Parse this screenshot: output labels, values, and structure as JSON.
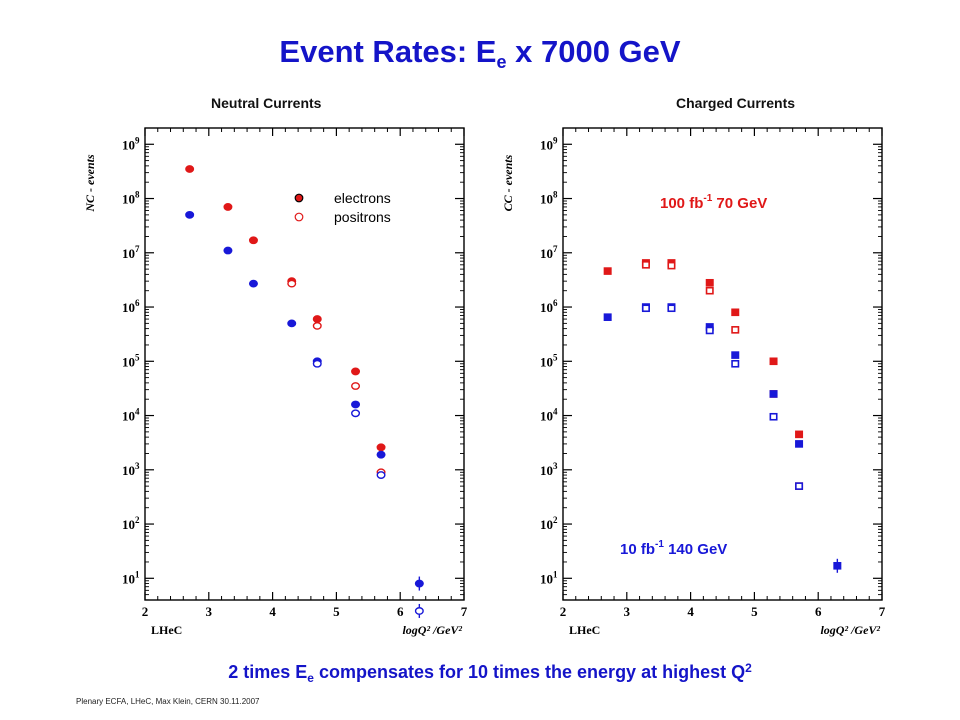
{
  "title": {
    "main": "Event Rates: E",
    "sub": "e",
    "rest": " x 7000 GeV"
  },
  "footer": "Plenary ECFA, LHeC, Max Klein, CERN 30.11.2007",
  "bottom_note": {
    "p1": "2 times E",
    "sub": "e",
    "p2": " compensates for 10 times the energy at highest Q",
    "sup": "2"
  },
  "colors": {
    "title": "#1414c8",
    "red": "#e01818",
    "blue": "#1818d8"
  },
  "chart_data": [
    {
      "type": "scatter",
      "title": "Neutral Currents",
      "xlabel": "logQ² /GeV²",
      "ylabel": "NC - events",
      "brand": "LHeC",
      "xlim": [
        2,
        7
      ],
      "ylim_log10": [
        0.6,
        9.3
      ],
      "x_ticks": [
        "2",
        "3",
        "4",
        "5",
        "6",
        "7"
      ],
      "y_ticks": [
        {
          "base": "10",
          "exp": "1"
        },
        {
          "base": "10",
          "exp": "2"
        },
        {
          "base": "10",
          "exp": "3"
        },
        {
          "base": "10",
          "exp": "4"
        },
        {
          "base": "10",
          "exp": "5"
        },
        {
          "base": "10",
          "exp": "6"
        },
        {
          "base": "10",
          "exp": "7"
        },
        {
          "base": "10",
          "exp": "8"
        },
        {
          "base": "10",
          "exp": "9"
        }
      ],
      "legend": {
        "position": "top-right",
        "items": [
          "electrons",
          "positrons"
        ]
      },
      "series": [
        {
          "marker": "filled-circle",
          "color": "red",
          "points": [
            [
              2.7,
              350000000.0
            ],
            [
              3.3,
              70000000.0
            ],
            [
              3.7,
              17000000.0
            ],
            [
              4.3,
              3000000.0
            ],
            [
              4.7,
              600000.0
            ],
            [
              5.3,
              65000.0
            ],
            [
              5.7,
              2600.0
            ]
          ]
        },
        {
          "marker": "open-circle",
          "color": "red",
          "points": [
            [
              4.3,
              2700000.0
            ],
            [
              4.7,
              450000.0
            ],
            [
              5.3,
              35000.0
            ],
            [
              5.7,
              900.0
            ]
          ]
        },
        {
          "marker": "filled-circle",
          "color": "blue",
          "points": [
            [
              2.7,
              50000000.0
            ],
            [
              3.3,
              11000000.0
            ],
            [
              3.7,
              2700000.0
            ],
            [
              4.3,
              500000.0
            ],
            [
              4.7,
              100000.0
            ],
            [
              5.3,
              16000.0
            ],
            [
              5.7,
              1900.0
            ],
            [
              6.3,
              8.0
            ]
          ]
        },
        {
          "marker": "open-circle",
          "color": "blue",
          "points": [
            [
              4.7,
              90000.0
            ],
            [
              5.3,
              11000.0
            ],
            [
              5.7,
              800.0
            ],
            [
              6.3,
              2.5
            ]
          ]
        }
      ]
    },
    {
      "type": "scatter",
      "title": "Charged Currents",
      "xlabel": "logQ² /GeV²",
      "ylabel": "CC - events",
      "brand": "LHeC",
      "xlim": [
        2,
        7
      ],
      "ylim_log10": [
        0.6,
        9.3
      ],
      "x_ticks": [
        "2",
        "3",
        "4",
        "5",
        "6",
        "7"
      ],
      "y_ticks": [
        {
          "base": "10",
          "exp": "1"
        },
        {
          "base": "10",
          "exp": "2"
        },
        {
          "base": "10",
          "exp": "3"
        },
        {
          "base": "10",
          "exp": "4"
        },
        {
          "base": "10",
          "exp": "5"
        },
        {
          "base": "10",
          "exp": "6"
        },
        {
          "base": "10",
          "exp": "7"
        },
        {
          "base": "10",
          "exp": "8"
        },
        {
          "base": "10",
          "exp": "9"
        }
      ],
      "annotations": [
        {
          "text": "100 fb",
          "sup": "-1",
          "rest": "  70 GeV",
          "color": "red"
        },
        {
          "text": "10 fb",
          "sup": "-1",
          "rest": "  140 GeV",
          "color": "blue"
        }
      ],
      "series": [
        {
          "marker": "filled-square",
          "color": "red",
          "points": [
            [
              2.7,
              4600000.0
            ],
            [
              3.3,
              6500000.0
            ],
            [
              3.7,
              6500000.0
            ],
            [
              4.3,
              2800000.0
            ],
            [
              4.7,
              800000.0
            ],
            [
              5.3,
              100000.0
            ],
            [
              5.7,
              4500.0
            ]
          ]
        },
        {
          "marker": "open-square",
          "color": "red",
          "points": [
            [
              3.3,
              6000000.0
            ],
            [
              3.7,
              5800000.0
            ],
            [
              4.3,
              2000000.0
            ],
            [
              4.7,
              380000.0
            ],
            [
              5.3,
              25000.0
            ],
            [
              5.7,
              500.0
            ]
          ]
        },
        {
          "marker": "filled-square",
          "color": "blue",
          "points": [
            [
              2.7,
              650000.0
            ],
            [
              3.3,
              1000000.0
            ],
            [
              3.7,
              1000000.0
            ],
            [
              4.3,
              430000.0
            ],
            [
              4.7,
              130000.0
            ],
            [
              5.3,
              25000.0
            ],
            [
              5.7,
              3000.0
            ],
            [
              6.3,
              17
            ]
          ]
        },
        {
          "marker": "open-square",
          "color": "blue",
          "points": [
            [
              3.3,
              950000.0
            ],
            [
              3.7,
              950000.0
            ],
            [
              4.3,
              370000.0
            ],
            [
              4.7,
              90000.0
            ],
            [
              5.3,
              9500.0
            ],
            [
              5.7,
              500.0
            ]
          ]
        }
      ]
    }
  ]
}
